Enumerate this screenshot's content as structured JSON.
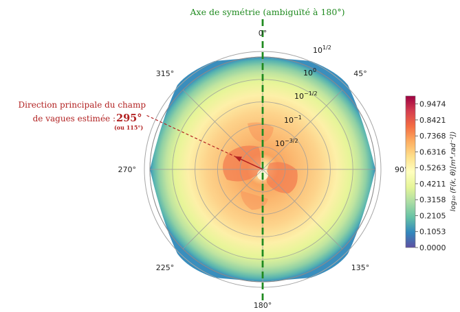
{
  "chart_data": {
    "type": "polar-heatmap",
    "symmetry_axis": {
      "label": "Axe de symétrie (ambiguïté à 180°)",
      "angle_deg": 0,
      "color": "#1f8a1f"
    },
    "angular_ticks": [
      {
        "angle": 0,
        "label": "0°"
      },
      {
        "angle": 45,
        "label": "45°"
      },
      {
        "angle": 90,
        "label": "90°"
      },
      {
        "angle": 135,
        "label": "135°"
      },
      {
        "angle": 180,
        "label": "180°"
      },
      {
        "angle": 225,
        "label": "225°"
      },
      {
        "angle": 270,
        "label": "270°"
      },
      {
        "angle": 315,
        "label": "315°"
      }
    ],
    "radial_scale": "log",
    "radial_ticks": [
      {
        "exp": -1.5,
        "base": "10",
        "sup": "−3/2"
      },
      {
        "exp": -1,
        "base": "10",
        "sup": "−1"
      },
      {
        "exp": -0.5,
        "base": "10",
        "sup": "−1/2"
      },
      {
        "exp": 0,
        "base": "10",
        "sup": "0"
      },
      {
        "exp": 0.5,
        "base": "10",
        "sup": "1/2"
      }
    ],
    "annotation": {
      "line1": "Direction principale du champ",
      "line2": "de vagues estimée : ",
      "value": "295°",
      "alt": "(ou 115°)",
      "direction_deg": 295,
      "color": "#b22222"
    },
    "colorbar": {
      "label": "log₁₀ (F(k, θ)[m⁴.rad⁻²])",
      "ticks": [
        "0.0000",
        "0.1053",
        "0.2105",
        "0.3158",
        "0.4211",
        "0.5263",
        "0.6316",
        "0.7368",
        "0.8421",
        "0.9474"
      ],
      "min": 0,
      "max": 1,
      "colormap": [
        "#5e4fa2",
        "#3288bd",
        "#66c2a5",
        "#abdda4",
        "#e6f598",
        "#ffffbf",
        "#fee08b",
        "#fdae61",
        "#f46d43",
        "#d53e4f",
        "#9e0142"
      ]
    }
  }
}
